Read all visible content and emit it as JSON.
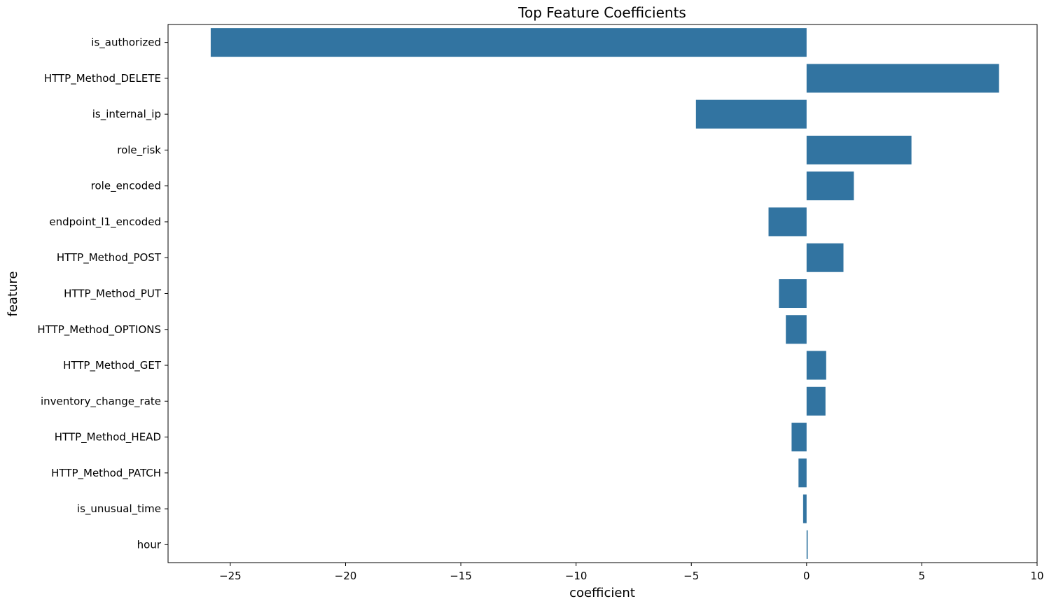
{
  "chart_data": {
    "type": "bar",
    "orientation": "horizontal",
    "title": "Top Feature Coefficients",
    "xlabel": "coefficient",
    "ylabel": "feature",
    "categories": [
      "is_authorized",
      "HTTP_Method_DELETE",
      "is_internal_ip",
      "role_risk",
      "role_encoded",
      "endpoint_l1_encoded",
      "HTTP_Method_POST",
      "HTTP_Method_PUT",
      "HTTP_Method_OPTIONS",
      "HTTP_Method_GET",
      "inventory_change_rate",
      "HTTP_Method_HEAD",
      "HTTP_Method_PATCH",
      "is_unusual_time",
      "hour"
    ],
    "values": [
      -25.85,
      8.35,
      -4.8,
      4.55,
      2.05,
      -1.65,
      1.6,
      -1.2,
      -0.9,
      0.85,
      0.82,
      -0.65,
      -0.35,
      -0.15,
      0.05
    ],
    "xlim": [
      -27.7,
      10.0
    ],
    "xticks": [
      -25,
      -20,
      -15,
      -10,
      -5,
      0,
      5,
      10
    ],
    "xtick_labels": [
      "−25",
      "−20",
      "−15",
      "−10",
      "−5",
      "0",
      "5",
      "10"
    ],
    "grid": false,
    "bar_color": "#3274a1"
  }
}
